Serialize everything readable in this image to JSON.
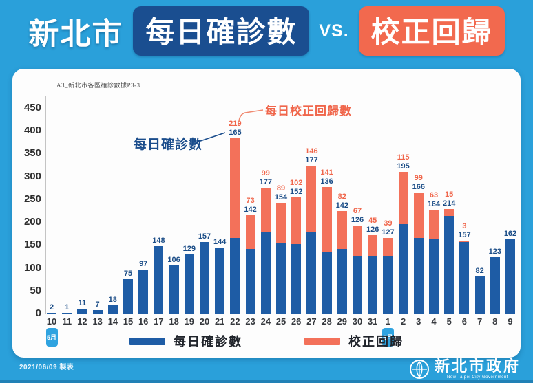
{
  "title": {
    "city": "新北市",
    "box1": "每日確診數",
    "vs": "VS.",
    "box2": "校正回歸"
  },
  "colors": {
    "page_bg": "#2aa0da",
    "navy_box": "#1a4e90",
    "orange_box": "#f2694e",
    "bar_blue": "#1e5ca5",
    "bar_orange": "#f3715a",
    "label_blue": "#1b4d87",
    "label_orange": "#f0664b"
  },
  "chart_data": {
    "type": "bar",
    "stacked": true,
    "note": "A3_新北市各區確診數據P3-3",
    "categories": [
      "10",
      "11",
      "12",
      "13",
      "14",
      "15",
      "16",
      "17",
      "18",
      "19",
      "20",
      "21",
      "22",
      "23",
      "24",
      "25",
      "26",
      "27",
      "28",
      "29",
      "30",
      "31",
      "1",
      "2",
      "3",
      "4",
      "5",
      "6",
      "7",
      "8",
      "9"
    ],
    "series": [
      {
        "name": "每日確診數",
        "color": "#1e5ca5",
        "values": [
          2,
          1,
          11,
          7,
          18,
          75,
          97,
          148,
          106,
          129,
          157,
          144,
          165,
          142,
          177,
          154,
          152,
          177,
          136,
          142,
          126,
          126,
          127,
          195,
          166,
          164,
          214,
          157,
          82,
          123,
          162
        ]
      },
      {
        "name": "校正回歸",
        "color": "#f3715a",
        "values": [
          0,
          0,
          0,
          0,
          0,
          0,
          0,
          0,
          0,
          0,
          0,
          0,
          219,
          73,
          99,
          89,
          102,
          146,
          141,
          82,
          67,
          45,
          39,
          115,
          99,
          63,
          15,
          3,
          0,
          0,
          0
        ]
      }
    ],
    "ylim": [
      0,
      450
    ],
    "yticks": [
      0,
      50,
      100,
      150,
      200,
      250,
      300,
      350,
      400,
      450
    ],
    "grid": false,
    "legend_position": "bottom",
    "month_markers": [
      {
        "label": "5月",
        "index": 0
      },
      {
        "label": "6月",
        "index": 22
      }
    ],
    "annotations": [
      {
        "text": "每日確診數",
        "color": "#1b4d8c",
        "points_to": "confirmed value 165 on 5/22"
      },
      {
        "text": "每日校正回歸數",
        "color": "#f0664b",
        "points_to": "correction value 219 on 5/22"
      }
    ]
  },
  "legend": {
    "confirmed": "每日確診數",
    "correction": "校正回歸"
  },
  "footer": {
    "date_note": "2021/06/09 製表",
    "org_cn": "新北市政府",
    "org_en": "New Taipei City Government"
  }
}
